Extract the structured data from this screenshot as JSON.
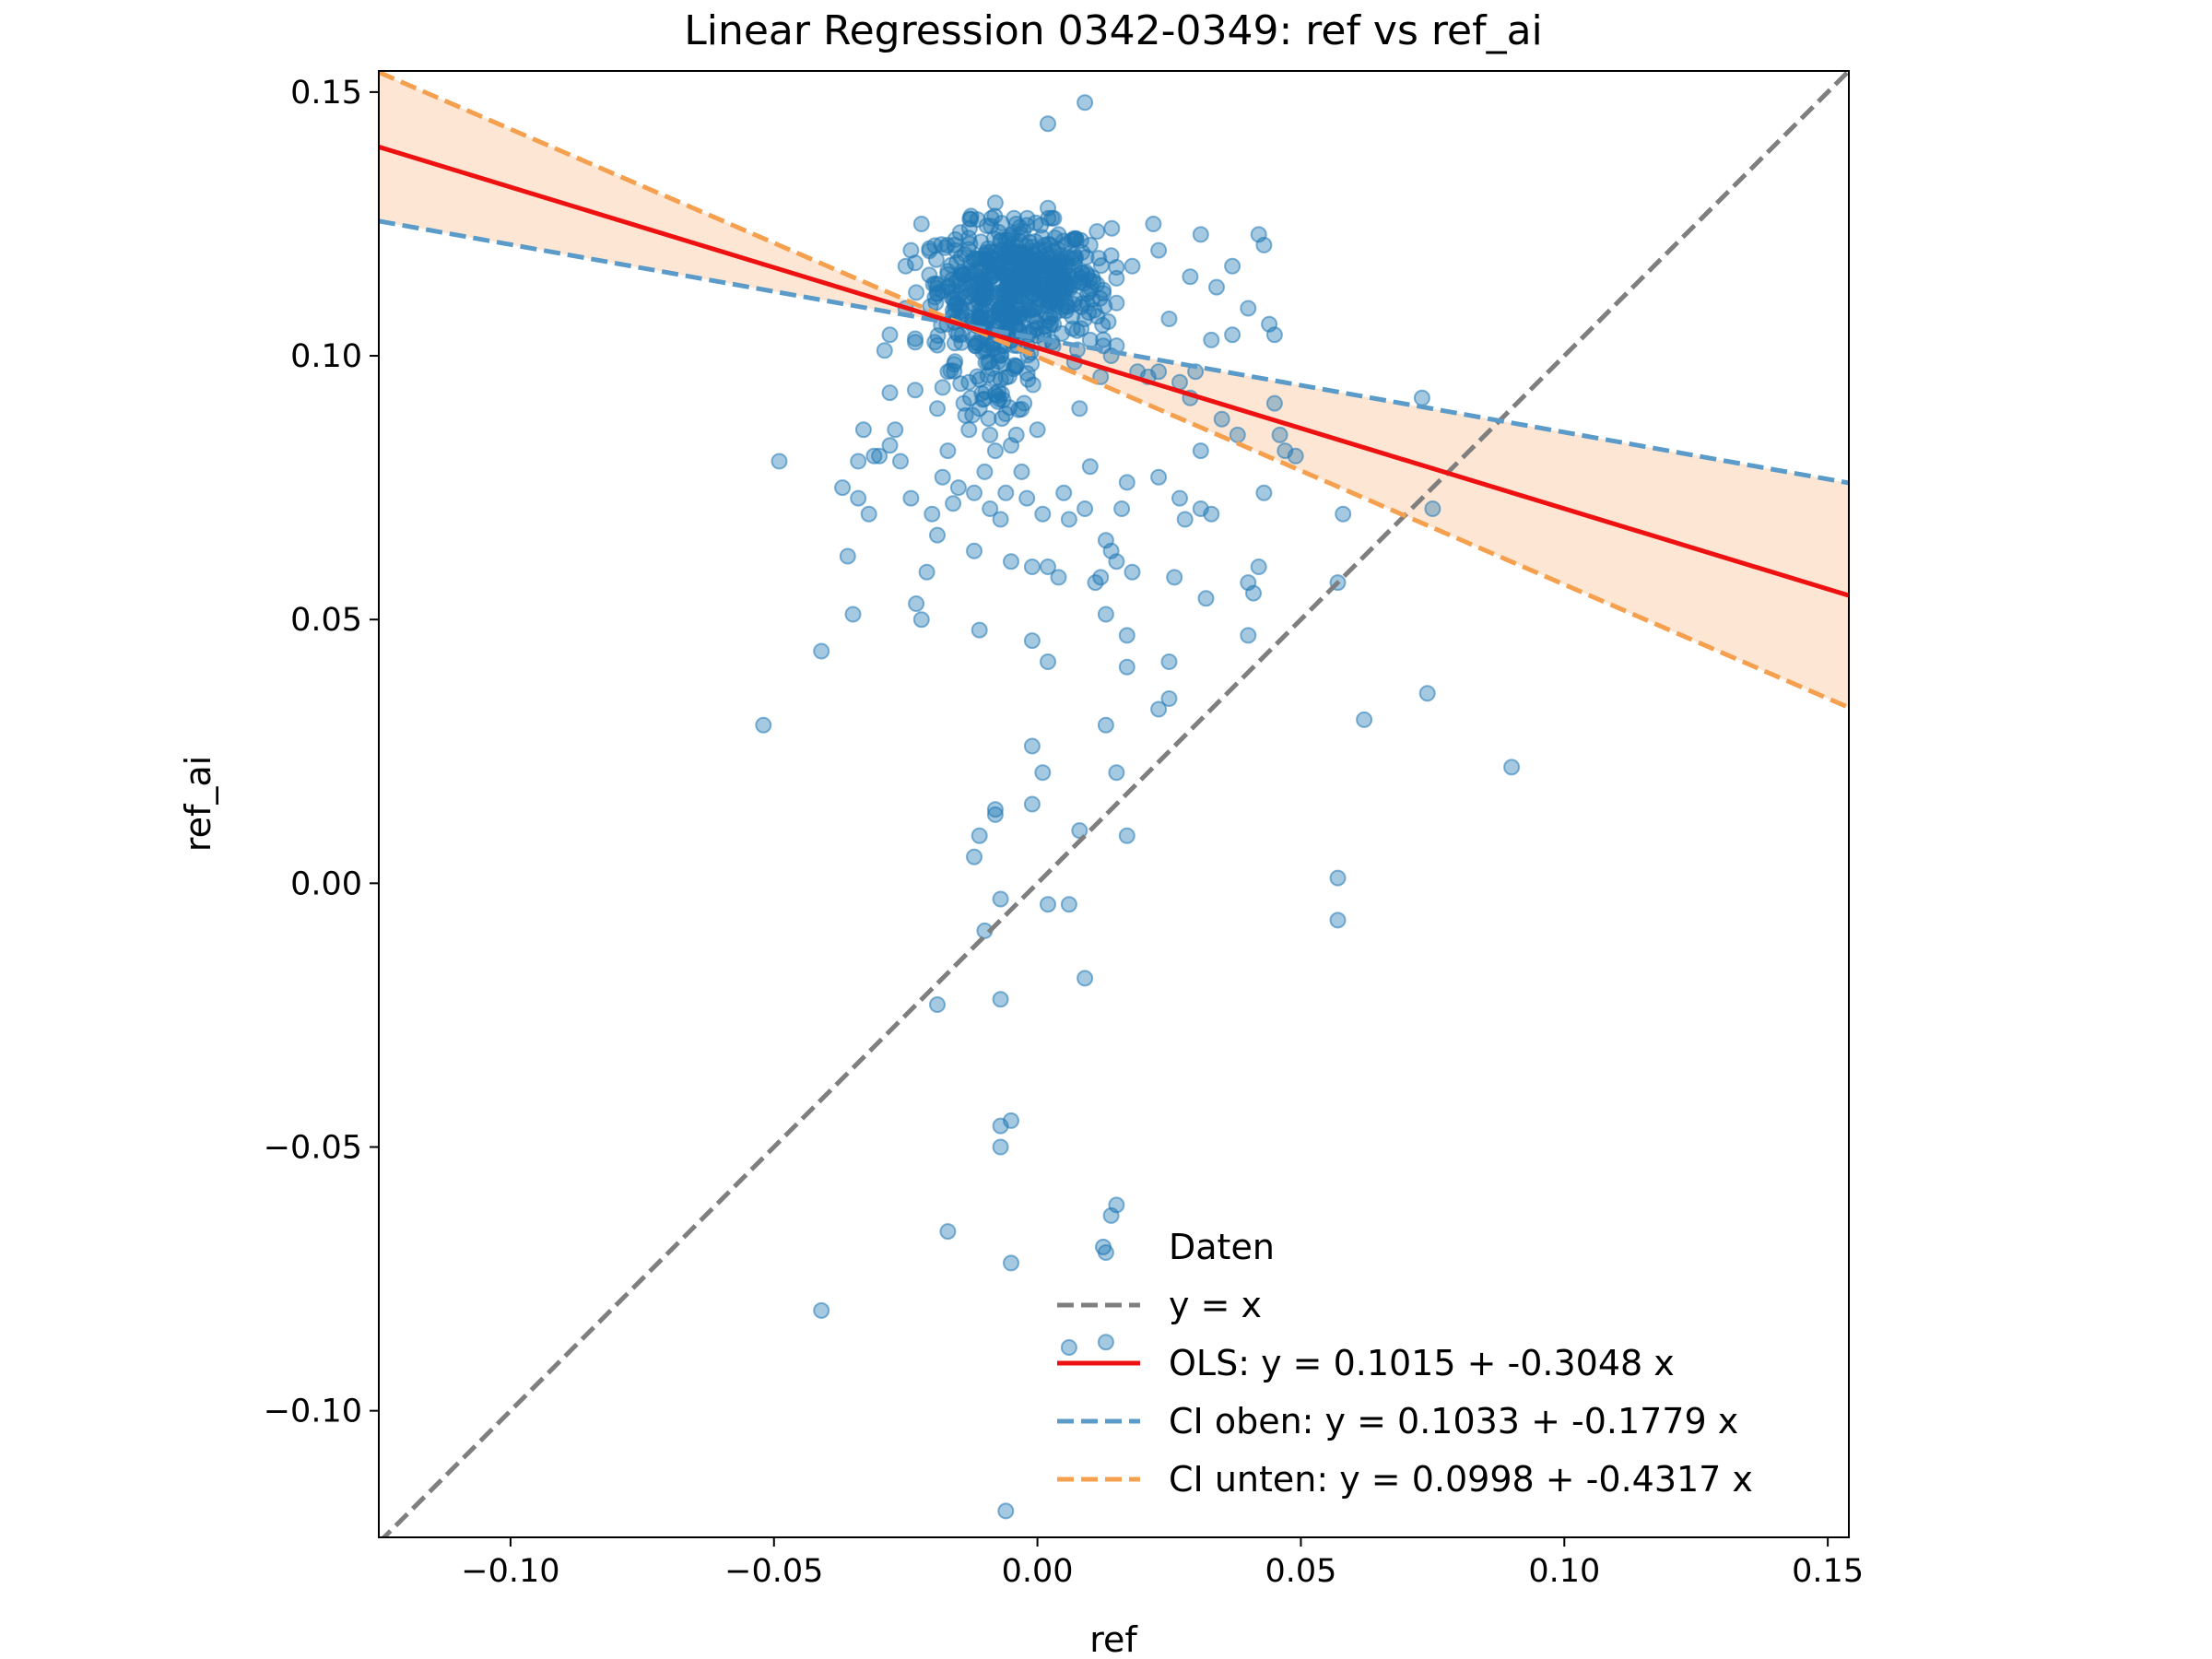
{
  "chart_data": {
    "type": "scatter",
    "title": "Linear Regression 0342-0349: ref vs ref_ai",
    "xlabel": "ref",
    "ylabel": "ref_ai",
    "xlim": [
      -0.125,
      0.154
    ],
    "ylim": [
      -0.124,
      0.154
    ],
    "xticks": [
      -0.1,
      -0.05,
      0.0,
      0.05,
      0.1,
      0.15
    ],
    "xtick_labels": [
      "−0.10",
      "−0.05",
      "0.00",
      "0.05",
      "0.10",
      "0.15"
    ],
    "yticks": [
      0.15,
      0.1,
      0.05,
      0.0,
      -0.05,
      -0.1
    ],
    "ytick_labels": [
      "0.15",
      "0.10",
      "0.05",
      "0.00",
      "−0.05",
      "−0.10"
    ],
    "grid": false,
    "legend_position": "lower-right",
    "colors": {
      "points": "#1f77b4",
      "identity": "#7f7f7f",
      "ols": "#ee1111",
      "ci_upper": "#5b9bc9",
      "ci_lower": "#f5a04f",
      "band": "#fde3cc"
    },
    "lines": {
      "identity": {
        "label": "y = x",
        "intercept": 0.0,
        "slope": 1.0
      },
      "ols": {
        "label": "OLS: y = 0.1015 + -0.3048 x",
        "intercept": 0.1015,
        "slope": -0.3048
      },
      "ci_upper": {
        "label": "CI oben: y = 0.1033 + -0.1779 x",
        "intercept": 0.1033,
        "slope": -0.1779
      },
      "ci_lower": {
        "label": "CI unten: y = 0.0998 + -0.4317 x",
        "intercept": 0.0998,
        "slope": -0.4317
      }
    },
    "points_label": "Daten",
    "points": [
      [
        0.002,
        0.144
      ],
      [
        0.009,
        0.148
      ],
      [
        -0.052,
        0.03
      ],
      [
        -0.049,
        0.08
      ],
      [
        -0.041,
        0.044
      ],
      [
        -0.041,
        -0.081
      ],
      [
        -0.037,
        0.075
      ],
      [
        -0.036,
        0.062
      ],
      [
        -0.035,
        0.051
      ],
      [
        -0.034,
        0.08
      ],
      [
        -0.034,
        0.073
      ],
      [
        -0.033,
        0.086
      ],
      [
        -0.032,
        0.07
      ],
      [
        -0.031,
        0.081
      ],
      [
        -0.03,
        0.081
      ],
      [
        -0.029,
        0.101
      ],
      [
        -0.028,
        0.093
      ],
      [
        -0.028,
        0.083
      ],
      [
        -0.027,
        0.086
      ],
      [
        -0.026,
        0.08
      ],
      [
        -0.025,
        0.109
      ],
      [
        -0.024,
        0.073
      ],
      [
        -0.023,
        0.053
      ],
      [
        -0.022,
        0.05
      ],
      [
        -0.021,
        0.059
      ],
      [
        -0.02,
        0.07
      ],
      [
        -0.019,
        0.066
      ],
      [
        -0.019,
        0.102
      ],
      [
        -0.018,
        0.077
      ],
      [
        -0.018,
        0.094
      ],
      [
        -0.017,
        0.082
      ],
      [
        -0.017,
        0.113
      ],
      [
        -0.016,
        0.072
      ],
      [
        -0.015,
        0.075
      ],
      [
        -0.015,
        0.104
      ],
      [
        -0.014,
        0.091
      ],
      [
        -0.013,
        0.086
      ],
      [
        -0.013,
        0.095
      ],
      [
        -0.012,
        0.074
      ],
      [
        -0.012,
        0.063
      ],
      [
        -0.011,
        0.09
      ],
      [
        -0.011,
        0.048
      ],
      [
        -0.01,
        0.078
      ],
      [
        -0.009,
        0.071
      ],
      [
        -0.009,
        0.085
      ],
      [
        -0.008,
        0.082
      ],
      [
        -0.008,
        0.013
      ],
      [
        -0.008,
        0.014
      ],
      [
        -0.007,
        0.069
      ],
      [
        -0.006,
        0.089
      ],
      [
        -0.006,
        0.074
      ],
      [
        -0.005,
        0.083
      ],
      [
        -0.005,
        0.061
      ],
      [
        -0.004,
        0.085
      ],
      [
        -0.003,
        0.078
      ],
      [
        -0.002,
        0.073
      ],
      [
        -0.001,
        0.06
      ],
      [
        -0.001,
        0.046
      ],
      [
        0.0,
        0.086
      ],
      [
        0.001,
        0.07
      ],
      [
        0.002,
        0.06
      ],
      [
        0.002,
        0.042
      ],
      [
        -0.001,
        0.026
      ],
      [
        0.001,
        0.021
      ],
      [
        -0.001,
        0.015
      ],
      [
        0.004,
        0.058
      ],
      [
        0.005,
        0.074
      ],
      [
        0.006,
        0.069
      ],
      [
        0.008,
        0.09
      ],
      [
        0.009,
        0.071
      ],
      [
        0.01,
        0.079
      ],
      [
        0.011,
        0.057
      ],
      [
        0.012,
        0.058
      ],
      [
        0.013,
        0.065
      ],
      [
        0.013,
        0.051
      ],
      [
        0.014,
        0.063
      ],
      [
        0.015,
        0.061
      ],
      [
        0.016,
        0.071
      ],
      [
        0.017,
        0.076
      ],
      [
        0.017,
        0.047
      ],
      [
        0.017,
        0.041
      ],
      [
        0.018,
        0.059
      ],
      [
        0.013,
        0.03
      ],
      [
        0.019,
        0.097
      ],
      [
        0.021,
        0.096
      ],
      [
        0.023,
        0.077
      ],
      [
        0.023,
        0.033
      ],
      [
        0.025,
        0.035
      ],
      [
        0.025,
        0.042
      ],
      [
        0.026,
        0.058
      ],
      [
        0.027,
        0.073
      ],
      [
        0.028,
        0.069
      ],
      [
        0.03,
        0.097
      ],
      [
        0.031,
        0.071
      ],
      [
        0.031,
        0.082
      ],
      [
        0.033,
        0.07
      ],
      [
        0.033,
        0.103
      ],
      [
        0.032,
        0.054
      ],
      [
        0.035,
        0.088
      ],
      [
        0.038,
        0.085
      ],
      [
        0.04,
        0.057
      ],
      [
        0.04,
        0.047
      ],
      [
        0.041,
        0.055
      ],
      [
        0.042,
        0.06
      ],
      [
        0.043,
        0.074
      ],
      [
        0.045,
        0.091
      ],
      [
        0.046,
        0.085
      ],
      [
        0.047,
        0.082
      ],
      [
        0.049,
        0.081
      ],
      [
        0.057,
        0.057
      ],
      [
        0.058,
        0.07
      ],
      [
        0.062,
        0.031
      ],
      [
        0.073,
        0.092
      ],
      [
        0.074,
        0.036
      ],
      [
        0.075,
        0.071
      ],
      [
        0.09,
        0.022
      ],
      [
        0.057,
        0.001
      ],
      [
        0.057,
        -0.007
      ],
      [
        -0.011,
        0.009
      ],
      [
        -0.012,
        0.005
      ],
      [
        -0.01,
        -0.009
      ],
      [
        -0.007,
        -0.003
      ],
      [
        0.002,
        -0.004
      ],
      [
        0.006,
        -0.004
      ],
      [
        0.008,
        0.01
      ],
      [
        0.017,
        0.009
      ],
      [
        0.015,
        0.021
      ],
      [
        0.009,
        -0.018
      ],
      [
        -0.019,
        -0.023
      ],
      [
        -0.007,
        -0.022
      ],
      [
        -0.007,
        -0.046
      ],
      [
        -0.005,
        -0.045
      ],
      [
        -0.007,
        -0.05
      ],
      [
        -0.017,
        -0.066
      ],
      [
        -0.005,
        -0.072
      ],
      [
        0.013,
        -0.07
      ],
      [
        0.014,
        -0.063
      ],
      [
        0.015,
        -0.061
      ],
      [
        0.006,
        -0.088
      ],
      [
        0.013,
        -0.087
      ],
      [
        -0.006,
        -0.119
      ],
      [
        0.022,
        0.125
      ],
      [
        0.023,
        0.12
      ],
      [
        0.031,
        0.123
      ],
      [
        0.037,
        0.117
      ],
      [
        0.042,
        0.123
      ],
      [
        0.043,
        0.121
      ],
      [
        0.029,
        0.115
      ],
      [
        0.034,
        0.113
      ],
      [
        0.04,
        0.109
      ],
      [
        0.037,
        0.104
      ],
      [
        0.044,
        0.106
      ],
      [
        0.045,
        0.104
      ],
      [
        0.025,
        0.107
      ],
      [
        0.023,
        0.097
      ],
      [
        0.027,
        0.095
      ],
      [
        0.029,
        0.092
      ],
      [
        0.015,
        0.11
      ],
      [
        0.014,
        0.1
      ],
      [
        0.012,
        0.096
      ],
      [
        0.01,
        0.103
      ],
      [
        -0.022,
        0.125
      ],
      [
        -0.024,
        0.12
      ],
      [
        -0.025,
        0.117
      ],
      [
        -0.023,
        0.112
      ],
      [
        -0.028,
        0.104
      ],
      [
        -0.019,
        0.09
      ],
      [
        -0.017,
        0.097
      ],
      [
        -0.006,
        0.122
      ],
      [
        -0.004,
        0.125
      ],
      [
        0.002,
        0.128
      ],
      [
        -0.008,
        0.129
      ],
      [
        0.004,
        0.123
      ],
      [
        0.01,
        0.121
      ],
      [
        0.014,
        0.119
      ],
      [
        0.018,
        0.117
      ]
    ],
    "clusters": [
      {
        "cx": -0.004,
        "cy": 0.114,
        "sx": 0.0075,
        "sy": 0.0055,
        "n": 360
      },
      {
        "cx": -0.01,
        "cy": 0.11,
        "sx": 0.006,
        "sy": 0.0075,
        "n": 110
      },
      {
        "cx": -0.007,
        "cy": 0.098,
        "sx": 0.004,
        "sy": 0.0045,
        "n": 60
      },
      {
        "cx": 0.004,
        "cy": 0.112,
        "sx": 0.005,
        "sy": 0.006,
        "n": 90
      }
    ]
  }
}
